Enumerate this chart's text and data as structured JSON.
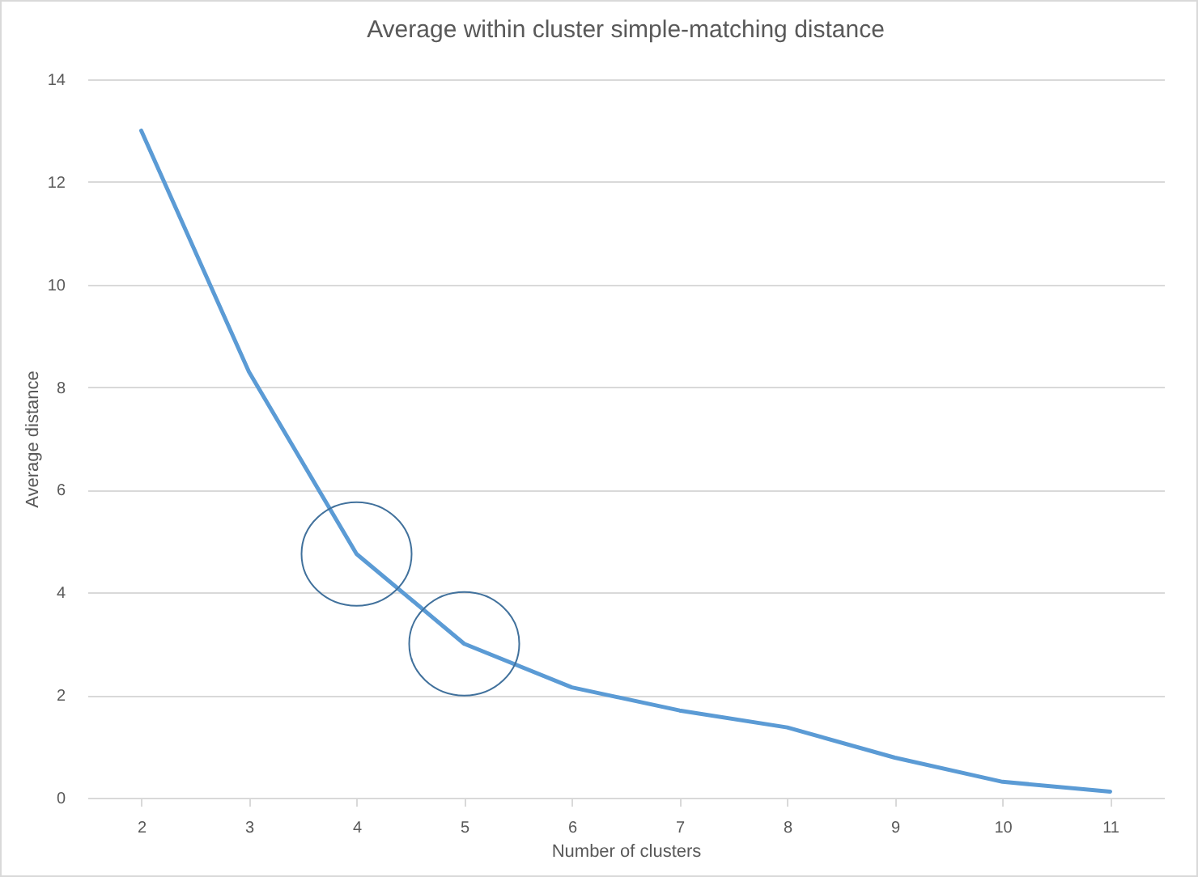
{
  "chart_data": {
    "type": "line",
    "title": "Average within cluster simple-matching distance",
    "xlabel": "Number of clusters",
    "ylabel": "Average distance",
    "categories": [
      "2",
      "3",
      "4",
      "5",
      "6",
      "7",
      "8",
      "9",
      "10",
      "11"
    ],
    "series": [
      {
        "color": "#5b9bd5",
        "values": [
          13,
          8.3,
          4.75,
          3.0,
          2.15,
          1.7,
          1.37,
          0.78,
          0.31,
          0.12
        ]
      }
    ],
    "ylim": [
      0,
      14
    ],
    "yticks": [
      0,
      2,
      4,
      6,
      8,
      10,
      12,
      14
    ],
    "grid": "y",
    "marker": "none",
    "line_style": "solid"
  }
}
